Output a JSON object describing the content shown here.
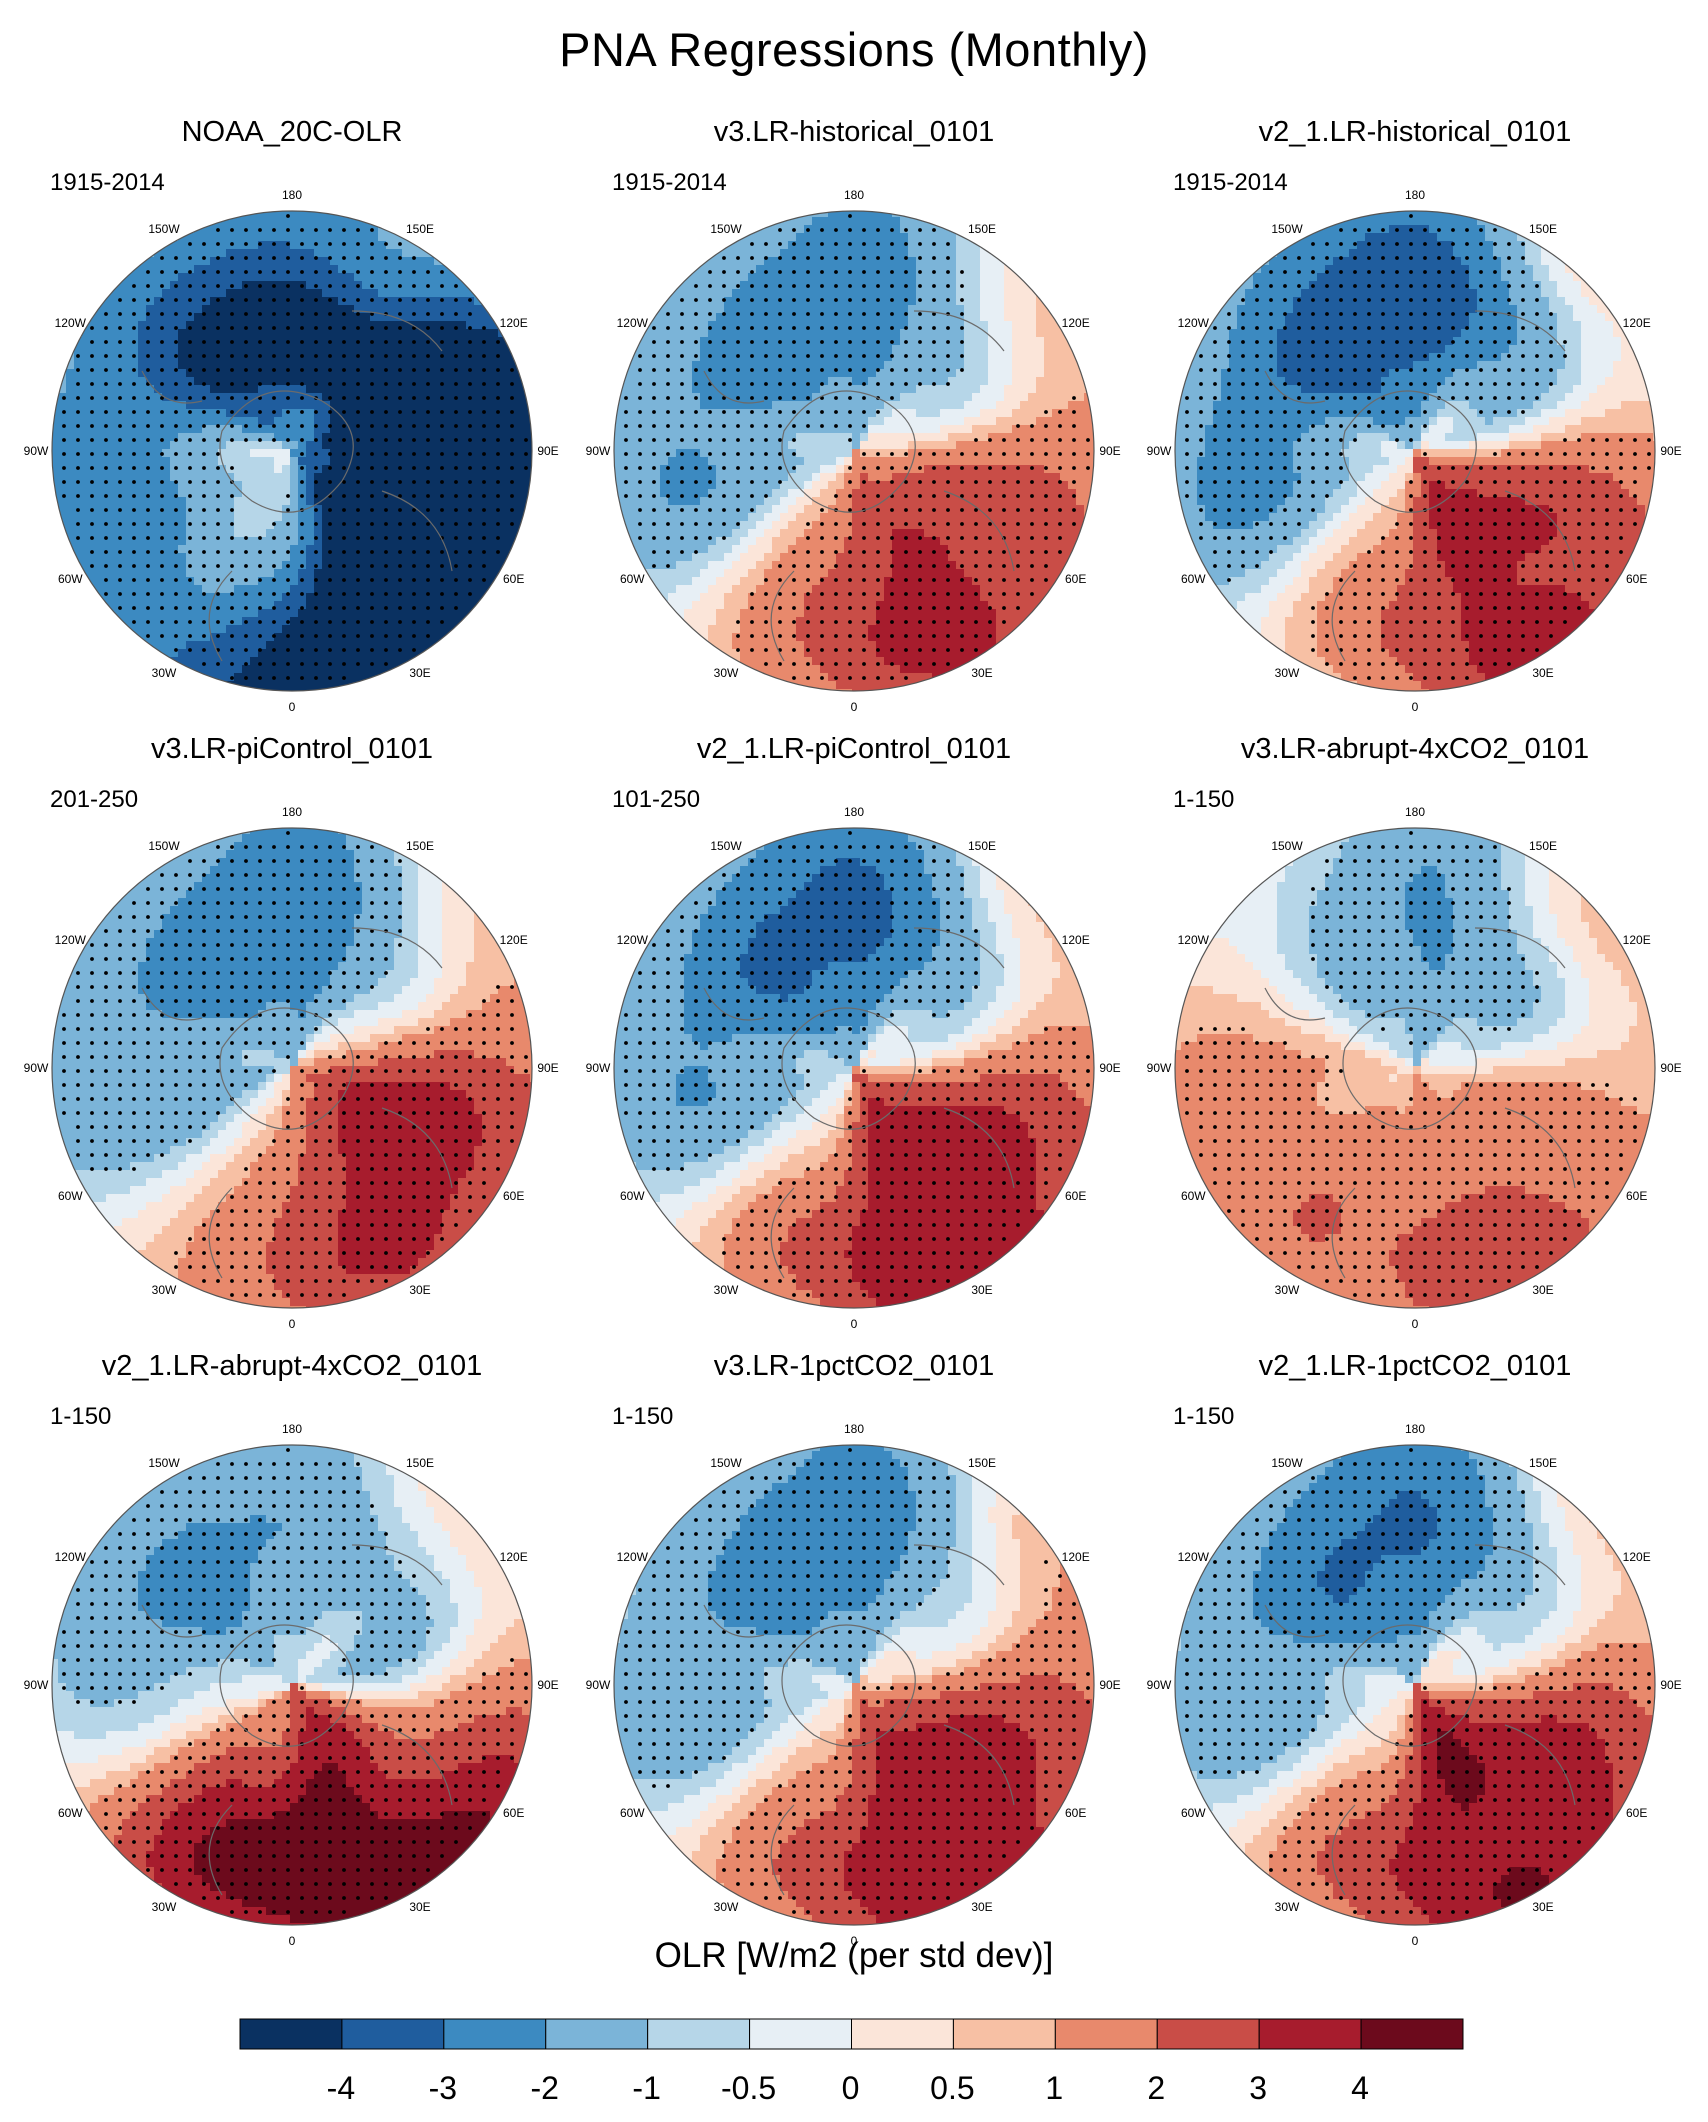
{
  "chart_data": {
    "type": "heatmap",
    "title": "PNA Regressions (Monthly)",
    "projection": "north polar stereographic",
    "colorbar": {
      "label": "OLR [W/m2 (per std dev)]",
      "ticks": [
        "-4",
        "-3",
        "-2",
        "-1",
        "-0.5",
        "0",
        "0.5",
        "1",
        "2",
        "3",
        "4"
      ],
      "colors": [
        "#0a3161",
        "#1f5d9e",
        "#3c8ac1",
        "#7bb4d8",
        "#b6d6e8",
        "#e7eff5",
        "#fbe5d9",
        "#f7c0a4",
        "#e8896c",
        "#c94d47",
        "#a71c2d",
        "#6c0a1c"
      ]
    },
    "lon_labels": [
      "180",
      "150E",
      "120E",
      "90E",
      "60E",
      "30E",
      "0",
      "30W",
      "60W",
      "90W",
      "120W",
      "150W"
    ],
    "panels": [
      {
        "name": "NOAA_20C-OLR",
        "period": "1915-2014"
      },
      {
        "name": "v3.LR-historical_0101",
        "period": "1915-2014"
      },
      {
        "name": "v2_1.LR-historical_0101",
        "period": "1915-2014"
      },
      {
        "name": "v3.LR-piControl_0101",
        "period": "201-250"
      },
      {
        "name": "v2_1.LR-piControl_0101",
        "period": "101-250"
      },
      {
        "name": "v3.LR-abrupt-4xCO2_0101",
        "period": "1-150"
      },
      {
        "name": "v2_1.LR-abrupt-4xCO2_0101",
        "period": "1-150"
      },
      {
        "name": "v3.LR-1pctCO2_0101",
        "period": "1-150"
      },
      {
        "name": "v2_1.LR-1pctCO2_0101",
        "period": "1-150"
      }
    ],
    "features": [
      [
        [
          -5.5,
          0.8,
          1.0,
          0.9,
          0.55,
          0.22
        ],
        [
          -3.5,
          0.45,
          2.6,
          2.2,
          0.28,
          0.12
        ],
        [
          2.6,
          0.45,
          -1.0,
          0.8,
          0.35,
          0.16
        ],
        [
          -2.8,
          0.88,
          -0.65,
          1.1,
          0.5,
          0.15
        ],
        [
          2.4,
          0.45,
          -0.05,
          0.4,
          0.25,
          0.14
        ],
        [
          -1.4,
          0.6,
          -2.8,
          1.0,
          0.5,
          0.22
        ],
        [
          -1.2,
          0.8,
          1.8,
          0.7,
          0.35,
          0.15
        ],
        [
          0.8,
          0.7,
          2.3,
          0.5,
          0.3,
          0.14
        ]
      ],
      [
        [
          4.5,
          0.82,
          0.55,
          1.2,
          0.4,
          0.16
        ],
        [
          -2.0,
          0.62,
          1.5,
          1.4,
          0.4,
          0.15
        ],
        [
          2.5,
          0.32,
          0.3,
          1.0,
          0.35,
          0.22
        ],
        [
          -2.3,
          0.75,
          -0.9,
          0.8,
          0.5,
          0.15
        ],
        [
          -1.8,
          0.62,
          3.0,
          0.9,
          0.4,
          0.18
        ],
        [
          -1.2,
          0.55,
          -1.8,
          0.7,
          0.35,
          0.2
        ],
        [
          0.6,
          0.6,
          2.0,
          0.5,
          0.3,
          0.14
        ]
      ],
      [
        [
          5.0,
          0.82,
          0.65,
          1.2,
          0.4,
          0.16
        ],
        [
          -2.8,
          0.62,
          1.6,
          1.4,
          0.4,
          0.15
        ],
        [
          2.8,
          0.3,
          0.4,
          1.2,
          0.35,
          0.22
        ],
        [
          -2.5,
          0.75,
          -0.85,
          0.8,
          0.5,
          0.15
        ],
        [
          -2.6,
          0.6,
          3.0,
          0.9,
          0.4,
          0.18
        ],
        [
          -1.5,
          0.55,
          -1.8,
          0.7,
          0.35,
          0.2
        ],
        [
          0.5,
          0.55,
          2.0,
          0.6,
          0.3,
          0.14
        ]
      ],
      [
        [
          4.2,
          0.82,
          0.6,
          1.1,
          0.4,
          0.16
        ],
        [
          -1.6,
          0.62,
          1.4,
          1.4,
          0.4,
          0.15
        ],
        [
          2.8,
          0.32,
          0.9,
          0.8,
          0.35,
          0.22
        ],
        [
          -1.5,
          0.8,
          -0.9,
          0.8,
          0.5,
          0.15
        ],
        [
          -2.2,
          0.6,
          3.0,
          0.9,
          0.4,
          0.18
        ],
        [
          -1.0,
          0.55,
          -1.8,
          0.7,
          0.35,
          0.2
        ],
        [
          0.8,
          0.6,
          2.0,
          0.5,
          0.3,
          0.14
        ]
      ],
      [
        [
          5.2,
          0.82,
          0.55,
          1.2,
          0.4,
          0.16
        ],
        [
          -2.4,
          0.62,
          1.5,
          1.4,
          0.4,
          0.15
        ],
        [
          2.6,
          0.32,
          0.6,
          1.0,
          0.35,
          0.22
        ],
        [
          -2.2,
          0.75,
          -0.9,
          0.8,
          0.5,
          0.15
        ],
        [
          -2.4,
          0.6,
          3.0,
          0.9,
          0.4,
          0.18
        ],
        [
          -1.2,
          0.55,
          -1.8,
          0.7,
          0.35,
          0.2
        ],
        [
          0.6,
          0.6,
          2.0,
          0.5,
          0.3,
          0.14
        ]
      ],
      [
        [
          4.0,
          0.82,
          0.6,
          1.2,
          0.4,
          0.16
        ],
        [
          -2.5,
          0.62,
          1.5,
          1.4,
          0.4,
          0.15
        ],
        [
          1.8,
          0.32,
          0.6,
          1.0,
          0.35,
          0.22
        ],
        [
          1.2,
          0.72,
          -1.1,
          0.6,
          0.5,
          0.15
        ],
        [
          -1.6,
          0.55,
          2.6,
          0.9,
          0.4,
          0.18
        ],
        [
          -1.2,
          0.72,
          -0.45,
          0.6,
          0.5,
          0.15
        ],
        [
          1.0,
          0.65,
          2.2,
          0.5,
          0.3,
          0.14
        ]
      ],
      [
        [
          5.5,
          0.82,
          0.6,
          1.2,
          0.4,
          0.16
        ],
        [
          -4.0,
          0.55,
          1.45,
          0.9,
          0.32,
          0.14
        ],
        [
          2.5,
          0.35,
          0.5,
          1.2,
          0.35,
          0.22
        ],
        [
          -1.8,
          0.7,
          -1.7,
          0.7,
          0.5,
          0.15
        ],
        [
          -1.6,
          0.7,
          2.6,
          0.9,
          0.4,
          0.18
        ],
        [
          -1.0,
          0.55,
          -2.2,
          0.7,
          0.35,
          0.2
        ],
        [
          0.6,
          0.6,
          2.0,
          0.5,
          0.3,
          0.14
        ]
      ],
      [
        [
          5.0,
          0.82,
          0.55,
          1.2,
          0.4,
          0.16
        ],
        [
          -2.0,
          0.62,
          1.5,
          1.4,
          0.4,
          0.15
        ],
        [
          2.3,
          0.32,
          0.5,
          1.2,
          0.35,
          0.22
        ],
        [
          -2.2,
          0.75,
          -0.9,
          0.8,
          0.5,
          0.15
        ],
        [
          -2.0,
          0.6,
          3.0,
          0.9,
          0.4,
          0.18
        ],
        [
          -1.0,
          0.55,
          -1.8,
          0.7,
          0.35,
          0.2
        ],
        [
          0.6,
          0.6,
          2.0,
          0.5,
          0.3,
          0.14
        ]
      ],
      [
        [
          5.5,
          0.82,
          0.55,
          1.2,
          0.4,
          0.16
        ],
        [
          -2.6,
          0.62,
          1.5,
          1.4,
          0.4,
          0.15
        ],
        [
          2.8,
          0.3,
          0.5,
          1.2,
          0.35,
          0.22
        ],
        [
          -2.2,
          0.75,
          -0.9,
          0.8,
          0.5,
          0.15
        ],
        [
          -2.2,
          0.6,
          3.0,
          0.9,
          0.4,
          0.18
        ],
        [
          -1.2,
          0.55,
          -1.8,
          0.7,
          0.35,
          0.2
        ],
        [
          0.5,
          0.55,
          2.0,
          0.6,
          0.3,
          0.14
        ]
      ]
    ],
    "significance_threshold": 0.45
  }
}
